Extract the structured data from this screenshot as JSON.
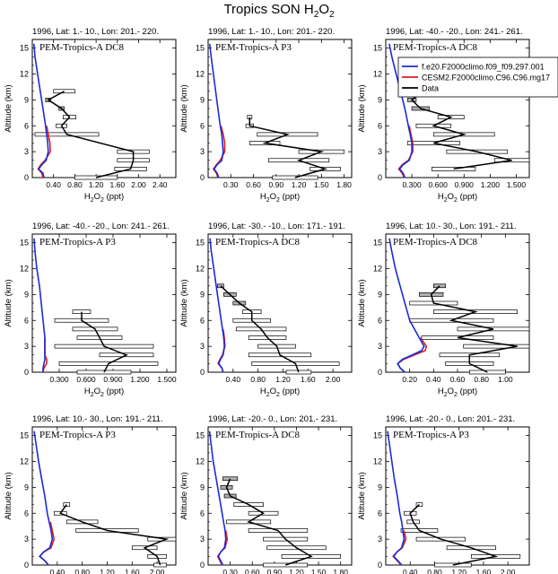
{
  "title_main": "Tropics SON H",
  "title_sub": "2",
  "title_tail": "O",
  "title_sub2": "2",
  "colors": {
    "model1": "#1b2bd6",
    "model2": "#e01b1b",
    "data": "#000000",
    "bar_fill": "#ffffff",
    "bar_fill_gray": "#b0b0b0"
  },
  "legend": {
    "entries": [
      {
        "name": "f.e20.F2000climo.f09_f09.297.001",
        "color": "#1b2bd6"
      },
      {
        "name": "CESM2.F2000climo.C96.C96.mg17",
        "color": "#e01b1b"
      },
      {
        "name": "Data",
        "color": "#000000"
      }
    ]
  },
  "chart_data": [
    {
      "type": "line",
      "region": "1996, Lat: 1.- 10., Lon: 201.- 220.",
      "campaign": "PEM-Tropics-A DC8",
      "xlabel": "H2O2 (ppt)",
      "ylabel": "Altitude (km)",
      "xlim": [
        0,
        2.7
      ],
      "xticks": [
        "0.40",
        "0.80",
        "1.20",
        "1.60",
        "2.00",
        "2.40"
      ],
      "xtick_values": [
        0.4,
        0.8,
        1.2,
        1.6,
        2.0,
        2.4
      ],
      "ylim": [
        0,
        16
      ],
      "yticks": [
        "0",
        "3",
        "6",
        "9",
        "12",
        "15"
      ],
      "ytick_values": [
        0,
        3,
        6,
        9,
        12,
        15
      ],
      "model1": {
        "y": [
          0,
          0.5,
          1,
          1.5,
          2,
          3,
          4,
          5,
          6,
          8,
          10,
          12,
          14,
          15.5
        ],
        "x": [
          0.22,
          0.2,
          0.12,
          0.18,
          0.26,
          0.3,
          0.29,
          0.27,
          0.25,
          0.2,
          0.15,
          0.1,
          0.05,
          0.03
        ]
      },
      "model2": {
        "y": [
          0,
          0.5,
          1,
          1.5,
          2,
          3,
          4,
          5,
          6
        ],
        "x": [
          0.2,
          0.18,
          0.11,
          0.16,
          0.24,
          0.34,
          0.33,
          0.3,
          0.27
        ]
      },
      "obs": {
        "y": [
          0,
          1,
          2,
          3,
          5,
          6,
          7,
          8,
          9,
          10
        ],
        "x": [
          1.2,
          1.85,
          1.9,
          1.9,
          0.65,
          0.55,
          0.7,
          0.55,
          0.3,
          0.6
        ],
        "err": [
          0.4,
          0.3,
          0.3,
          0.3,
          0.6,
          0.1,
          0.12,
          0.05,
          0.05,
          0.2
        ]
      }
    },
    {
      "type": "line",
      "region": "1996, Lat: 1.- 10., Lon: 201.- 220.",
      "campaign": "PEM-Tropics-A P3",
      "xlabel": "H2O2 (ppt)",
      "ylabel": "Altitude (km)",
      "xlim": [
        0,
        1.9
      ],
      "xticks": [
        "0.30",
        "0.60",
        "0.90",
        "1.20",
        "1.50",
        "1.80"
      ],
      "xtick_values": [
        0.3,
        0.6,
        0.9,
        1.2,
        1.5,
        1.8
      ],
      "ylim": [
        0,
        16
      ],
      "yticks": [
        "0",
        "3",
        "6",
        "9",
        "12",
        "15"
      ],
      "ytick_values": [
        0,
        3,
        6,
        9,
        12,
        15
      ],
      "model1": {
        "y": [
          0,
          0.5,
          1,
          1.5,
          2,
          3,
          4,
          5,
          6,
          8,
          10,
          12,
          14,
          15.5
        ],
        "x": [
          0.14,
          0.12,
          0.08,
          0.12,
          0.18,
          0.2,
          0.19,
          0.18,
          0.16,
          0.13,
          0.1,
          0.07,
          0.04,
          0.02
        ]
      },
      "model2": {
        "y": [
          0,
          0.5,
          1,
          1.5,
          2,
          3,
          4,
          5,
          6
        ],
        "x": [
          0.13,
          0.11,
          0.07,
          0.11,
          0.16,
          0.22,
          0.22,
          0.2,
          0.17
        ]
      },
      "obs": {
        "y": [
          0,
          1,
          2,
          3,
          4,
          5,
          6,
          7
        ],
        "x": [
          1.15,
          1.55,
          1.2,
          1.5,
          0.75,
          1.05,
          0.55,
          0.55
        ],
        "err": [
          0.3,
          0.2,
          0.4,
          0.3,
          0.2,
          0.4,
          0.05,
          0.03
        ]
      }
    },
    {
      "type": "line",
      "region": "1996, Lat: -40.- -20., Lon: 241.- 261.",
      "campaign": "PEM-Tropics-A DC8",
      "xlabel": "H2O2 (ppt)",
      "ylabel": "Altitude (km)",
      "xlim": [
        0,
        1.65
      ],
      "xticks": [
        "0.300",
        "0.600",
        "0.900",
        "1.200",
        "1.500"
      ],
      "xtick_values": [
        0.3,
        0.6,
        0.9,
        1.2,
        1.5
      ],
      "ylim": [
        0,
        16
      ],
      "yticks": [
        "0",
        "3",
        "6",
        "9",
        "12",
        "15"
      ],
      "ytick_values": [
        0,
        3,
        6,
        9,
        12,
        15
      ],
      "model1": {
        "y": [
          0,
          0.5,
          1,
          1.5,
          2,
          3,
          4,
          5,
          6,
          8,
          10,
          12,
          14,
          15.5
        ],
        "x": [
          0.22,
          0.2,
          0.16,
          0.2,
          0.27,
          0.3,
          0.3,
          0.28,
          0.26,
          0.22,
          0.17,
          0.12,
          0.07,
          0.04
        ]
      },
      "model2": {
        "y": [
          0,
          0.5,
          1,
          1.5,
          2,
          3,
          4,
          5,
          6
        ],
        "x": [
          0.21,
          0.19,
          0.15,
          0.19,
          0.26,
          0.31,
          0.31,
          0.29,
          0.27
        ]
      },
      "obs": {
        "y": [
          1,
          2,
          3,
          4,
          5,
          6,
          7,
          8,
          9,
          10
        ],
        "x": [
          0.78,
          1.45,
          1.05,
          0.55,
          0.9,
          0.55,
          0.75,
          0.4,
          0.3,
          0.42
        ],
        "err": [
          0.25,
          0.2,
          0.35,
          0.3,
          0.35,
          0.2,
          0.15,
          0.1,
          0.05,
          0.1
        ]
      }
    },
    {
      "type": "line",
      "region": "1996, Lat: -40.- -20., Lon: 241.- 261.",
      "campaign": "PEM-Tropics-A P3",
      "xlabel": "H2O2 (ppt)",
      "ylabel": "Altitude (km)",
      "xlim": [
        0,
        1.6
      ],
      "xticks": [
        "0.300",
        "0.600",
        "0.900",
        "1.200",
        "1.500"
      ],
      "xtick_values": [
        0.3,
        0.6,
        0.9,
        1.2,
        1.5
      ],
      "ylim": [
        0,
        16
      ],
      "yticks": [
        "0",
        "3",
        "6",
        "9",
        "12",
        "15"
      ],
      "ytick_values": [
        0,
        3,
        6,
        9,
        12,
        15
      ],
      "model1": {
        "y": [
          0,
          0.5,
          1,
          1.5,
          2,
          3,
          4,
          5,
          6,
          8,
          10,
          12,
          14,
          15.5
        ],
        "x": [
          0.12,
          0.12,
          0.13,
          0.14,
          0.14,
          0.14,
          0.14,
          0.13,
          0.12,
          0.1,
          0.08,
          0.05,
          0.03,
          0.02
        ]
      },
      "model2": {
        "y": [
          0,
          0.5,
          1,
          1.5,
          2,
          3,
          4
        ],
        "x": [
          0.12,
          0.13,
          0.16,
          0.16,
          0.14,
          0.14,
          0.14
        ]
      },
      "obs": {
        "y": [
          0,
          1,
          2,
          3,
          4,
          5,
          6,
          7
        ],
        "x": [
          0.8,
          0.85,
          1.05,
          0.8,
          0.75,
          0.7,
          0.55,
          0.55
        ],
        "err": [
          0.3,
          0.55,
          0.3,
          0.55,
          0.25,
          0.25,
          0.3,
          0.1
        ]
      }
    },
    {
      "type": "line",
      "region": "1996, Lat: -30.- -10., Lon: 171.- 191.",
      "campaign": "PEM-Tropics-A DC8",
      "xlabel": "H2O2 (ppt)",
      "ylabel": "Altitude (km)",
      "xlim": [
        0,
        2.3
      ],
      "xticks": [
        "0.40",
        "0.80",
        "1.20",
        "1.60",
        "2.00"
      ],
      "xtick_values": [
        0.4,
        0.8,
        1.2,
        1.6,
        2.0
      ],
      "ylim": [
        0,
        16
      ],
      "yticks": [
        "0",
        "3",
        "6",
        "9",
        "12",
        "15"
      ],
      "ytick_values": [
        0,
        3,
        6,
        9,
        12,
        15
      ],
      "model1": {
        "y": [
          0,
          0.5,
          1,
          1.5,
          2,
          3,
          4,
          5,
          6,
          8,
          10,
          12,
          14,
          15.5
        ],
        "x": [
          0.24,
          0.22,
          0.17,
          0.2,
          0.24,
          0.26,
          0.25,
          0.23,
          0.21,
          0.17,
          0.13,
          0.09,
          0.05,
          0.03
        ]
      },
      "model2": {
        "y": [
          0,
          0.5,
          1,
          1.5,
          2,
          3,
          4,
          5
        ],
        "x": [
          0.24,
          0.22,
          0.16,
          0.19,
          0.23,
          0.27,
          0.26,
          0.24
        ]
      },
      "obs": {
        "y": [
          0,
          1,
          2,
          3,
          4,
          5,
          6,
          7,
          8,
          9,
          10
        ],
        "x": [
          1.45,
          1.4,
          1.15,
          1.1,
          0.95,
          0.85,
          0.7,
          0.7,
          0.5,
          0.35,
          0.2
        ],
        "err": [
          0.2,
          0.7,
          0.5,
          0.3,
          0.3,
          0.4,
          0.3,
          0.15,
          0.1,
          0.1,
          0.05
        ]
      }
    },
    {
      "type": "line",
      "region": "1996, Lat: 10.- 30., Lon: 191.- 211.",
      "campaign": "PEM-Tropics-A DC8",
      "xlabel": "H2O2 (ppt)",
      "ylabel": "Altitude (km)",
      "xlim": [
        0,
        1.2
      ],
      "xticks": [
        "0.20",
        "0.40",
        "0.60",
        "0.80",
        "1.00"
      ],
      "xtick_values": [
        0.2,
        0.4,
        0.6,
        0.8,
        1.0
      ],
      "ylim": [
        0,
        16
      ],
      "yticks": [
        "0",
        "3",
        "6",
        "9",
        "12",
        "15"
      ],
      "ytick_values": [
        0,
        3,
        6,
        9,
        12,
        15
      ],
      "model1": {
        "y": [
          0,
          0.5,
          1,
          1.5,
          2,
          2.5,
          3,
          4,
          5,
          6,
          8,
          10,
          12,
          14,
          15.5
        ],
        "x": [
          0.16,
          0.12,
          0.1,
          0.14,
          0.22,
          0.3,
          0.32,
          0.28,
          0.24,
          0.2,
          0.16,
          0.12,
          0.08,
          0.05,
          0.03
        ]
      },
      "model2": {
        "y": [
          0,
          0.5,
          1,
          1.5,
          2,
          2.5,
          3,
          4
        ],
        "x": [
          0.16,
          0.12,
          0.1,
          0.15,
          0.24,
          0.33,
          0.34,
          0.29
        ]
      },
      "obs": {
        "y": [
          0,
          1,
          2,
          3,
          4,
          5,
          6,
          7,
          8,
          9,
          10
        ],
        "x": [
          0.85,
          0.7,
          0.7,
          1.1,
          0.6,
          0.9,
          0.55,
          0.75,
          0.4,
          0.38,
          0.45
        ],
        "err": [
          0.15,
          0.2,
          0.25,
          0.45,
          0.3,
          0.3,
          0.35,
          0.35,
          0.2,
          0.1,
          0.05
        ]
      }
    },
    {
      "type": "line",
      "region": "1996, Lat: 10.- 30., Lon: 191.- 211.",
      "campaign": "PEM-Tropics-A P3",
      "xlabel": "H2O2 (ppt)",
      "ylabel": "Altitude (km)",
      "xlim": [
        0,
        2.3
      ],
      "xticks": [
        "0.40",
        "0.80",
        "1.20",
        "1.60",
        "2.00"
      ],
      "xtick_values": [
        0.4,
        0.8,
        1.2,
        1.6,
        2.0
      ],
      "ylim": [
        0,
        16
      ],
      "yticks": [
        "0",
        "3",
        "6",
        "9",
        "12",
        "15"
      ],
      "ytick_values": [
        0,
        3,
        6,
        9,
        12,
        15
      ],
      "model1": {
        "y": [
          0,
          0.5,
          1,
          1.5,
          2,
          3,
          4,
          5,
          6,
          8,
          10,
          12,
          14,
          15.5
        ],
        "x": [
          0.26,
          0.2,
          0.12,
          0.18,
          0.28,
          0.32,
          0.3,
          0.27,
          0.24,
          0.2,
          0.15,
          0.1,
          0.06,
          0.03
        ]
      },
      "model2": {
        "y": [
          0,
          0.5,
          1,
          1.5,
          2,
          3,
          4,
          5
        ],
        "x": [
          0.26,
          0.2,
          0.12,
          0.18,
          0.3,
          0.35,
          0.32,
          0.29
        ]
      },
      "obs": {
        "y": [
          0,
          1,
          2,
          3,
          4,
          5,
          6,
          7
        ],
        "x": [
          2.05,
          2.0,
          1.8,
          2.15,
          1.2,
          0.8,
          0.45,
          0.55
        ],
        "err": [
          0.1,
          0.15,
          0.2,
          0.3,
          0.5,
          0.25,
          0.1,
          0.05
        ]
      }
    },
    {
      "type": "line",
      "region": "1996, Lat: -20.- 0., Lon: 201.- 231.",
      "campaign": "PEM-Tropics-A DC8",
      "xlabel": "H2O2 (ppt)",
      "ylabel": "Altitude (km)",
      "xlim": [
        0,
        1.95
      ],
      "xticks": [
        "0.30",
        "0.60",
        "0.90",
        "1.20",
        "1.50",
        "1.80"
      ],
      "xtick_values": [
        0.3,
        0.6,
        0.9,
        1.2,
        1.5,
        1.8
      ],
      "ylim": [
        0,
        16
      ],
      "yticks": [
        "0",
        "3",
        "6",
        "9",
        "12",
        "15"
      ],
      "ytick_values": [
        0,
        3,
        6,
        9,
        12,
        15
      ],
      "model1": {
        "y": [
          0,
          0.5,
          1,
          1.5,
          2,
          3,
          4,
          5,
          6,
          8,
          10,
          12,
          14,
          15.5
        ],
        "x": [
          0.2,
          0.17,
          0.14,
          0.17,
          0.22,
          0.24,
          0.23,
          0.21,
          0.19,
          0.15,
          0.11,
          0.07,
          0.04,
          0.02
        ]
      },
      "model2": {
        "y": [
          0,
          0.5,
          1,
          1.5,
          2,
          3,
          4
        ],
        "x": [
          0.19,
          0.16,
          0.13,
          0.17,
          0.23,
          0.26,
          0.24
        ]
      },
      "obs": {
        "y": [
          0,
          1,
          2,
          3,
          4,
          5,
          6,
          7,
          8,
          9,
          10
        ],
        "x": [
          1.05,
          1.4,
          1.2,
          1.05,
          0.95,
          0.55,
          0.75,
          0.55,
          0.3,
          0.25,
          0.3
        ],
        "err": [
          0.3,
          0.4,
          0.4,
          0.3,
          0.4,
          0.3,
          0.2,
          0.2,
          0.08,
          0.08,
          0.1
        ]
      }
    },
    {
      "type": "line",
      "region": "1996, Lat: -20.- 0., Lon: 201.- 231.",
      "campaign": "PEM-Tropics-A P3",
      "xlabel": "H2O2 (ppt)",
      "ylabel": "Altitude (km)",
      "xlim": [
        0,
        2.35
      ],
      "xticks": [
        "0.40",
        "0.80",
        "1.20",
        "1.60",
        "2.00"
      ],
      "xtick_values": [
        0.4,
        0.8,
        1.2,
        1.6,
        2.0
      ],
      "ylim": [
        0,
        16
      ],
      "yticks": [
        "0",
        "3",
        "6",
        "9",
        "12",
        "15"
      ],
      "ytick_values": [
        0,
        3,
        6,
        9,
        12,
        15
      ],
      "model1": {
        "y": [
          0,
          0.5,
          1,
          1.5,
          2,
          3,
          4,
          5,
          6,
          8,
          10,
          12,
          14,
          15.5
        ],
        "x": [
          0.26,
          0.2,
          0.13,
          0.18,
          0.26,
          0.3,
          0.28,
          0.26,
          0.23,
          0.19,
          0.14,
          0.1,
          0.06,
          0.03
        ]
      },
      "model2": {
        "y": [
          0,
          0.5,
          1,
          1.5,
          2,
          3,
          4
        ],
        "x": [
          0.25,
          0.19,
          0.12,
          0.18,
          0.27,
          0.33,
          0.3
        ]
      },
      "obs": {
        "y": [
          0,
          1,
          2,
          3,
          4,
          5,
          6,
          7
        ],
        "x": [
          1.1,
          1.8,
          1.4,
          0.9,
          0.55,
          0.45,
          0.4,
          0.55
        ],
        "err": [
          0.3,
          0.4,
          0.4,
          0.4,
          0.3,
          0.1,
          0.1,
          0.05
        ]
      }
    }
  ]
}
